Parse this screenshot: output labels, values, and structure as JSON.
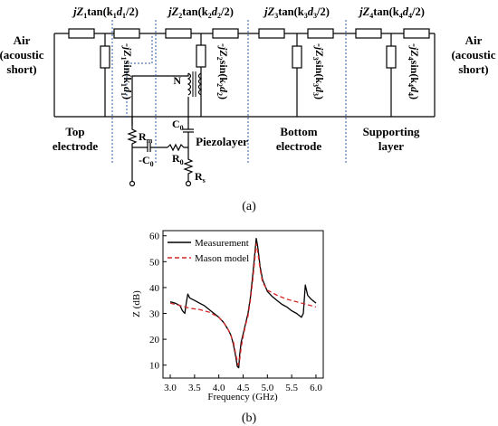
{
  "panel_a": {
    "tag": "(a)",
    "left_boundary": [
      "Air",
      "(acoustic",
      "short)"
    ],
    "right_boundary": [
      "Air",
      "(acoustic",
      "short)"
    ],
    "series_labels": [
      {
        "pre": "jZ",
        "sub": "1",
        "mid": "tan(k",
        "sub2": "1",
        "mid2": "d",
        "sub3": "1",
        "post": "/2)"
      },
      {
        "pre": "jZ",
        "sub": "2",
        "mid": "tan(k",
        "sub2": "2",
        "mid2": "d",
        "sub3": "2",
        "post": "/2)"
      },
      {
        "pre": "jZ",
        "sub": "3",
        "mid": "tan(k",
        "sub2": "3",
        "mid2": "d",
        "sub3": "3",
        "post": "/2)"
      },
      {
        "pre": "jZ",
        "sub": "4",
        "mid": "tan(k",
        "sub2": "4",
        "mid2": "d",
        "sub3": "4",
        "post": "/2)"
      }
    ],
    "shunt_labels": [
      {
        "pre": "-jZ",
        "sub": "1",
        "mid": "sin(k",
        "sub2": "1",
        "mid2": "d",
        "sub3": "1",
        "post": ")"
      },
      {
        "pre": "-jZ",
        "sub": "2",
        "mid": "sin(k",
        "sub2": "2",
        "mid2": "d",
        "sub3": "2",
        "post": ")"
      },
      {
        "pre": "-jZ",
        "sub": "3",
        "mid": "sin(k",
        "sub2": "3",
        "mid2": "d",
        "sub3": "3",
        "post": ")"
      },
      {
        "pre": "-jZ",
        "sub": "4",
        "mid": "sin(k",
        "sub2": "4",
        "mid2": "d",
        "sub3": "4",
        "post": ")"
      }
    ],
    "layer_labels": [
      [
        "Top",
        "electrode"
      ],
      [
        "Piezolayer"
      ],
      [
        "Bottom",
        "electrode"
      ],
      [
        "Supporting",
        "layer"
      ]
    ],
    "transformer_label": "N",
    "components": {
      "rm": {
        "main": "R",
        "sub": "m"
      },
      "c0_series": {
        "main": "C",
        "sub": "0"
      },
      "c0_neg": {
        "main": "-C",
        "sub": "0"
      },
      "r0": {
        "main": "R",
        "sub": "0"
      },
      "rs": {
        "main": "R",
        "sub": "s"
      }
    }
  },
  "panel_b": {
    "tag": "(b)",
    "chart_data": {
      "type": "line",
      "title": "",
      "xlabel": "Frequency  (GHz)",
      "ylabel": "Z  (dB)",
      "xlim": [
        2.85,
        6.15
      ],
      "ylim": [
        5,
        62
      ],
      "xticks": [
        "3.0",
        "3.5",
        "4.0",
        "4.5",
        "5.0",
        "5.5",
        "6.0"
      ],
      "yticks": [
        "10",
        "20",
        "30",
        "40",
        "50",
        "60"
      ],
      "legend_placement": "top-left",
      "grid": false,
      "series": [
        {
          "name": "Measurement",
          "color": "#000000",
          "dash": "solid",
          "x": [
            3.0,
            3.1,
            3.2,
            3.25,
            3.3,
            3.33,
            3.36,
            3.4,
            3.5,
            3.6,
            3.7,
            3.8,
            3.9,
            4.0,
            4.1,
            4.2,
            4.25,
            4.3,
            4.35,
            4.38,
            4.41,
            4.43,
            4.46,
            4.5,
            4.55,
            4.6,
            4.65,
            4.7,
            4.74,
            4.77,
            4.8,
            4.85,
            4.9,
            5.0,
            5.1,
            5.2,
            5.3,
            5.4,
            5.5,
            5.6,
            5.7,
            5.74,
            5.78,
            5.83,
            5.9,
            6.0
          ],
          "y": [
            34.5,
            34.0,
            33.0,
            31.0,
            30.0,
            34.0,
            37.5,
            36.0,
            35.0,
            34.0,
            33.0,
            31.5,
            30.0,
            28.5,
            26.5,
            23.5,
            21.5,
            18.0,
            13.0,
            9.5,
            9.0,
            14.0,
            19.0,
            22.0,
            26.0,
            30.0,
            36.0,
            45.0,
            53.0,
            59.0,
            56.0,
            48.0,
            43.0,
            38.5,
            36.5,
            35.0,
            33.5,
            32.5,
            31.0,
            30.0,
            28.5,
            30.0,
            41.0,
            37.0,
            35.5,
            34.0
          ]
        },
        {
          "name": "Mason model",
          "color": "#d62828",
          "dash": "dashed",
          "x": [
            3.0,
            3.2,
            3.4,
            3.6,
            3.8,
            4.0,
            4.1,
            4.2,
            4.3,
            4.35,
            4.4,
            4.43,
            4.46,
            4.5,
            4.55,
            4.6,
            4.65,
            4.7,
            4.74,
            4.77,
            4.8,
            4.85,
            4.9,
            5.0,
            5.2,
            5.4,
            5.6,
            5.8,
            6.0
          ],
          "y": [
            34.0,
            33.0,
            32.0,
            31.5,
            30.5,
            28.5,
            26.5,
            23.5,
            19.0,
            14.0,
            10.0,
            12.0,
            17.0,
            21.0,
            25.5,
            29.0,
            35.0,
            43.0,
            51.0,
            57.0,
            54.0,
            47.0,
            42.0,
            39.0,
            37.0,
            35.5,
            34.5,
            33.5,
            32.5
          ]
        }
      ]
    }
  }
}
